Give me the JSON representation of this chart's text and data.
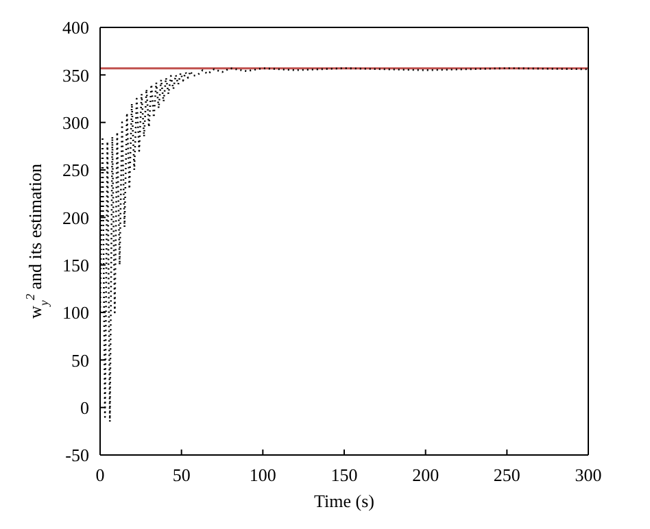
{
  "chart_data": {
    "type": "line",
    "xlabel": "Time (s)",
    "ylabel": "w$_{y}$$^{2}$ and its estimation",
    "x": [
      0,
      1.5,
      3,
      4.5,
      6,
      7.5,
      9,
      10.5,
      12,
      13.5,
      15,
      16.5,
      18,
      19.5,
      21,
      22.5,
      24,
      25.5,
      27,
      28.5,
      30,
      31.5,
      33,
      34.5,
      36,
      37.5,
      39,
      40.5,
      42,
      43.5,
      45,
      46.5,
      48,
      49.5,
      51,
      52.5,
      54,
      55.5,
      57,
      60,
      63,
      66,
      70,
      75,
      80,
      90,
      100,
      120,
      150,
      200,
      250,
      300
    ],
    "series": [
      {
        "color": "#000000",
        "values": [
          100,
          285,
          -10,
          280,
          -15,
          285,
          100,
          290,
          150,
          300,
          190,
          310,
          230,
          320,
          250,
          325,
          270,
          330,
          285,
          335,
          295,
          340,
          305,
          342,
          315,
          345,
          322,
          347,
          330,
          349,
          335,
          350,
          340,
          352,
          344,
          353,
          347,
          354,
          349,
          350,
          355,
          351,
          356,
          353,
          357,
          354,
          357,
          355,
          357,
          355,
          357,
          356
        ]
      }
    ],
    "line_style": "dotted",
    "marker": "none",
    "ref_lines": [
      {
        "axis": "y",
        "value": 357,
        "color": "#c0504d",
        "line_style": "solid"
      }
    ],
    "xlim": [
      0,
      300
    ],
    "xticks": [
      0,
      50,
      100,
      150,
      200,
      250,
      300
    ],
    "ylim": [
      -50,
      400
    ],
    "yticks": [
      -50,
      0,
      50,
      100,
      150,
      200,
      250,
      300,
      350,
      400
    ]
  }
}
